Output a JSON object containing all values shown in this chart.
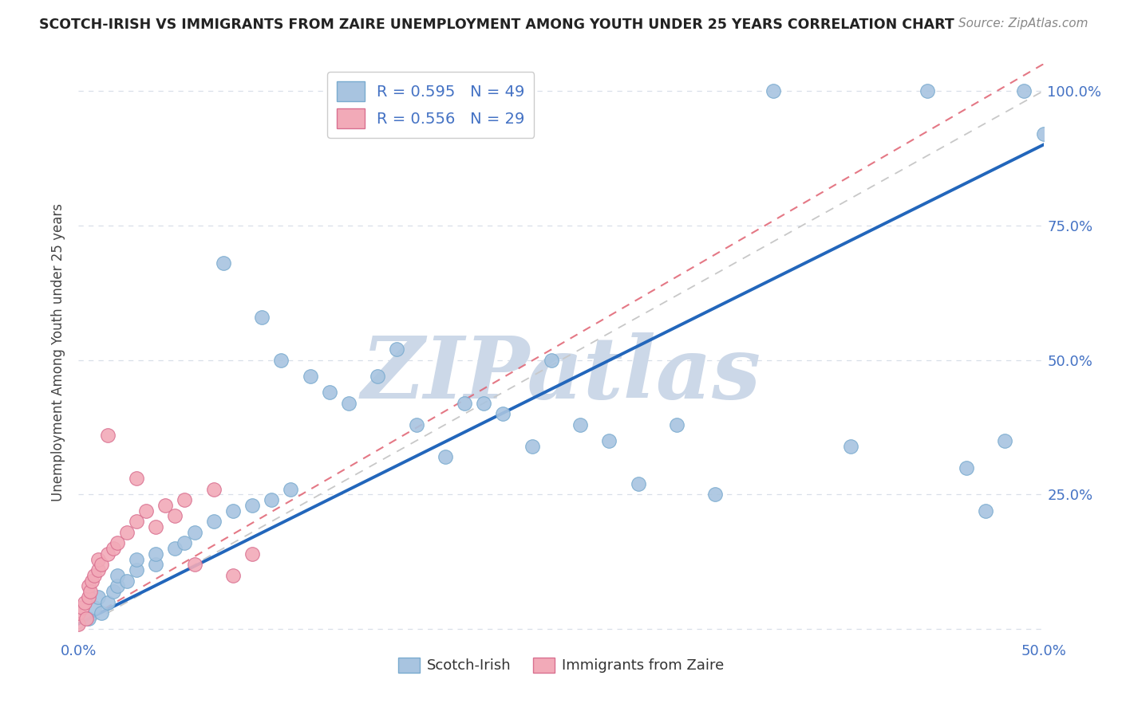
{
  "title": "SCOTCH-IRISH VS IMMIGRANTS FROM ZAIRE UNEMPLOYMENT AMONG YOUTH UNDER 25 YEARS CORRELATION CHART",
  "source": "Source: ZipAtlas.com",
  "ylabel": "Unemployment Among Youth under 25 years",
  "xlim": [
    0.0,
    0.5
  ],
  "ylim": [
    -0.02,
    1.05
  ],
  "xtick_vals": [
    0.0,
    0.1,
    0.2,
    0.3,
    0.4,
    0.5
  ],
  "xtick_labels": [
    "0.0%",
    "",
    "",
    "",
    "",
    "50.0%"
  ],
  "ytick_vals": [
    0.25,
    0.5,
    0.75,
    1.0
  ],
  "ytick_labels": [
    "25.0%",
    "50.0%",
    "75.0%",
    "100.0%"
  ],
  "scotch_irish_R": 0.595,
  "scotch_irish_N": 49,
  "zaire_R": 0.556,
  "zaire_N": 29,
  "scotch_irish_color": "#a8c4e0",
  "scotch_irish_edge": "#7aabcf",
  "zaire_color": "#f2aab8",
  "zaire_edge": "#d97090",
  "blue_line_color": "#2266bb",
  "pink_line_color": "#e06070",
  "ref_line_color": "#c8c8c8",
  "grid_color": "#d8dfe8",
  "watermark_color": "#ccd8e8",
  "background_color": "#ffffff",
  "scotch_irish_x": [
    0.005,
    0.008,
    0.01,
    0.012,
    0.015,
    0.018,
    0.02,
    0.02,
    0.025,
    0.03,
    0.03,
    0.04,
    0.04,
    0.05,
    0.055,
    0.06,
    0.07,
    0.075,
    0.08,
    0.09,
    0.095,
    0.1,
    0.105,
    0.11,
    0.12,
    0.13,
    0.14,
    0.155,
    0.165,
    0.175,
    0.19,
    0.2,
    0.21,
    0.22,
    0.235,
    0.245,
    0.26,
    0.275,
    0.29,
    0.31,
    0.33,
    0.36,
    0.4,
    0.44,
    0.46,
    0.47,
    0.48,
    0.49,
    0.5
  ],
  "scotch_irish_y": [
    0.02,
    0.04,
    0.06,
    0.03,
    0.05,
    0.07,
    0.08,
    0.1,
    0.09,
    0.11,
    0.13,
    0.12,
    0.14,
    0.15,
    0.16,
    0.18,
    0.2,
    0.68,
    0.22,
    0.23,
    0.58,
    0.24,
    0.5,
    0.26,
    0.47,
    0.44,
    0.42,
    0.47,
    0.52,
    0.38,
    0.32,
    0.42,
    0.42,
    0.4,
    0.34,
    0.5,
    0.38,
    0.35,
    0.27,
    0.38,
    0.25,
    1.0,
    0.34,
    1.0,
    0.3,
    0.22,
    0.35,
    1.0,
    0.92
  ],
  "zaire_x": [
    0.0,
    0.0,
    0.002,
    0.003,
    0.004,
    0.005,
    0.005,
    0.006,
    0.007,
    0.008,
    0.01,
    0.01,
    0.012,
    0.015,
    0.015,
    0.018,
    0.02,
    0.025,
    0.03,
    0.03,
    0.035,
    0.04,
    0.045,
    0.05,
    0.055,
    0.06,
    0.07,
    0.08,
    0.09
  ],
  "zaire_y": [
    0.01,
    0.03,
    0.04,
    0.05,
    0.02,
    0.06,
    0.08,
    0.07,
    0.09,
    0.1,
    0.11,
    0.13,
    0.12,
    0.14,
    0.36,
    0.15,
    0.16,
    0.18,
    0.28,
    0.2,
    0.22,
    0.19,
    0.23,
    0.21,
    0.24,
    0.12,
    0.26,
    0.1,
    0.14
  ],
  "blue_line_x0": 0.0,
  "blue_line_y0": 0.01,
  "blue_line_x1": 0.5,
  "blue_line_y1": 0.9,
  "pink_line_x0": 0.0,
  "pink_line_y0": 0.01,
  "pink_line_x1": 0.5,
  "pink_line_y1": 1.05,
  "ref_line_x0": 0.0,
  "ref_line_y0": 0.0,
  "ref_line_x1": 0.5,
  "ref_line_y1": 1.0
}
